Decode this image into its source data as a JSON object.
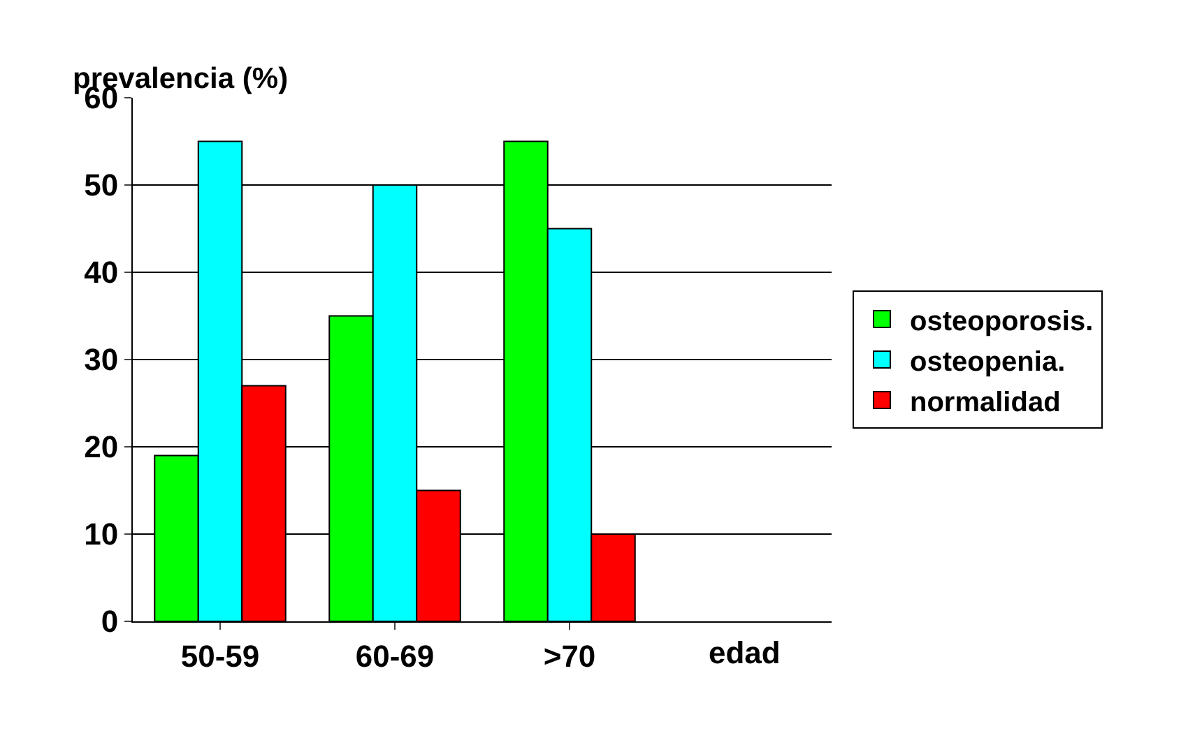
{
  "chart_data": {
    "type": "bar",
    "ylabel": "prevalencia (%)",
    "xlabel": "edad",
    "categories": [
      "50-59",
      "60-69",
      ">70"
    ],
    "series": [
      {
        "name": "osteoporosis.",
        "color": "#00ff00",
        "values": [
          19,
          35,
          55
        ]
      },
      {
        "name": "osteopenia.",
        "color": "#00ffff",
        "values": [
          55,
          50,
          45
        ]
      },
      {
        "name": "normalidad",
        "color": "#ff0000",
        "values": [
          27,
          15,
          10
        ]
      }
    ],
    "ylim": [
      0,
      60
    ],
    "yticks": [
      0,
      10,
      20,
      30,
      40,
      50,
      60
    ],
    "grid": "y",
    "legend": "right"
  }
}
